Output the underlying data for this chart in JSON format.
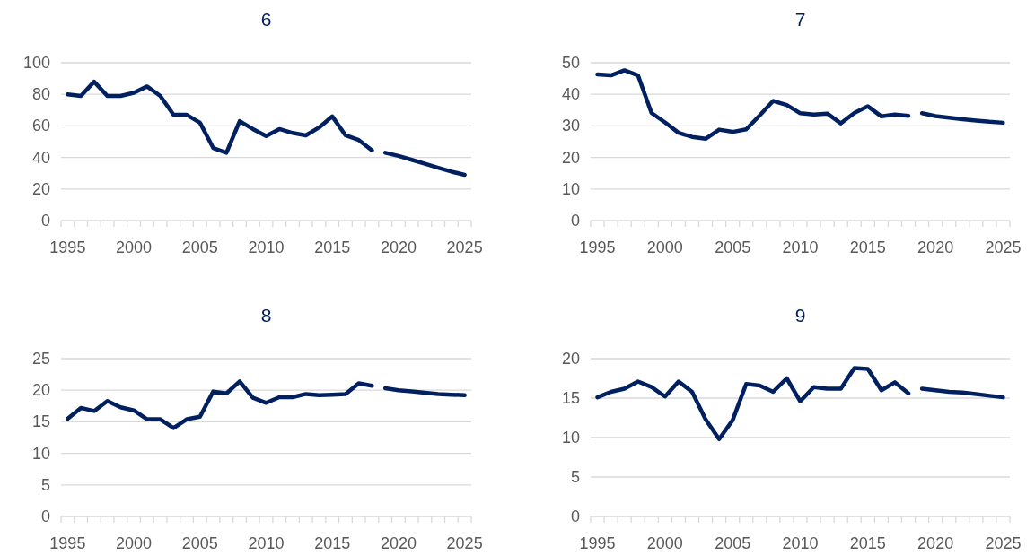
{
  "chart_data": [
    {
      "type": "line",
      "title": "6",
      "xlim": [
        1994.5,
        2025.5
      ],
      "ylim": [
        0,
        100
      ],
      "yticks": [
        0,
        20,
        40,
        60,
        80,
        100
      ],
      "grid": "y",
      "line_style": "solid",
      "marker": "none",
      "xticks": [
        {
          "value": 1994.5,
          "label": null
        },
        1995,
        {
          "value": 1995.5,
          "label": null
        },
        {
          "value": 1996.5,
          "label": null
        },
        {
          "value": 1997.5,
          "label": null
        },
        {
          "value": 1998.5,
          "label": null
        },
        {
          "value": 1999.5,
          "label": null
        },
        2000,
        {
          "value": 2000.5,
          "label": null
        },
        {
          "value": 2001.5,
          "label": null
        },
        {
          "value": 2002.5,
          "label": null
        },
        {
          "value": 2003.5,
          "label": null
        },
        {
          "value": 2004.5,
          "label": null
        },
        2005,
        {
          "value": 2005.5,
          "label": null
        },
        {
          "value": 2006.5,
          "label": null
        },
        {
          "value": 2007.5,
          "label": null
        },
        {
          "value": 2008.5,
          "label": null
        },
        {
          "value": 2009.5,
          "label": null
        },
        2010,
        {
          "value": 2010.5,
          "label": null
        },
        {
          "value": 2011.5,
          "label": null
        },
        {
          "value": 2012.5,
          "label": null
        },
        {
          "value": 2013.5,
          "label": null
        },
        {
          "value": 2014.5,
          "label": null
        },
        2015,
        {
          "value": 2015.5,
          "label": null
        },
        {
          "value": 2016.5,
          "label": null
        },
        {
          "value": 2017.5,
          "label": null
        },
        {
          "value": 2018.5,
          "label": null
        },
        {
          "value": 2019.5,
          "label": null
        },
        2020,
        {
          "value": 2020.5,
          "label": null
        },
        {
          "value": 2021.5,
          "label": null
        },
        {
          "value": 2022.5,
          "label": null
        },
        {
          "value": 2023.5,
          "label": null
        },
        {
          "value": 2024.5,
          "label": null
        },
        2025,
        {
          "value": 2025.5,
          "label": null
        }
      ],
      "series": [
        {
          "color": "#002060",
          "x": [
            1995,
            1996,
            1997,
            1998,
            1999,
            2000,
            2001,
            2002,
            2003,
            2004,
            2005,
            2006,
            2007,
            2008,
            2009,
            2010,
            2011,
            2012,
            2013,
            2014,
            2015,
            2016,
            2017,
            2018
          ],
          "values": [
            80,
            79,
            88,
            79,
            79,
            81,
            85,
            79,
            67,
            67,
            62,
            46,
            43,
            63,
            58,
            53.5,
            58,
            55.5,
            54,
            59,
            66,
            54,
            51,
            44.5
          ]
        },
        {
          "color": "#002060",
          "x": [
            2019,
            2020,
            2021,
            2022,
            2023,
            2024,
            2025
          ],
          "values": [
            43,
            41,
            38.5,
            36,
            33.5,
            31,
            29
          ]
        }
      ]
    },
    {
      "type": "line",
      "title": "7",
      "xlim": [
        1994.5,
        2025.5
      ],
      "ylim": [
        0,
        50
      ],
      "yticks": [
        0,
        10,
        20,
        30,
        40,
        50
      ],
      "grid": "y",
      "line_style": "solid",
      "marker": "none",
      "xticks": [
        {
          "value": 1994.5,
          "label": null
        },
        1995,
        {
          "value": 1995.5,
          "label": null
        },
        {
          "value": 1996.5,
          "label": null
        },
        {
          "value": 1997.5,
          "label": null
        },
        {
          "value": 1998.5,
          "label": null
        },
        {
          "value": 1999.5,
          "label": null
        },
        2000,
        {
          "value": 2000.5,
          "label": null
        },
        {
          "value": 2001.5,
          "label": null
        },
        {
          "value": 2002.5,
          "label": null
        },
        {
          "value": 2003.5,
          "label": null
        },
        {
          "value": 2004.5,
          "label": null
        },
        2005,
        {
          "value": 2005.5,
          "label": null
        },
        {
          "value": 2006.5,
          "label": null
        },
        {
          "value": 2007.5,
          "label": null
        },
        {
          "value": 2008.5,
          "label": null
        },
        {
          "value": 2009.5,
          "label": null
        },
        2010,
        {
          "value": 2010.5,
          "label": null
        },
        {
          "value": 2011.5,
          "label": null
        },
        {
          "value": 2012.5,
          "label": null
        },
        {
          "value": 2013.5,
          "label": null
        },
        {
          "value": 2014.5,
          "label": null
        },
        2015,
        {
          "value": 2015.5,
          "label": null
        },
        {
          "value": 2016.5,
          "label": null
        },
        {
          "value": 2017.5,
          "label": null
        },
        {
          "value": 2018.5,
          "label": null
        },
        {
          "value": 2019.5,
          "label": null
        },
        2020,
        {
          "value": 2020.5,
          "label": null
        },
        {
          "value": 2021.5,
          "label": null
        },
        {
          "value": 2022.5,
          "label": null
        },
        {
          "value": 2023.5,
          "label": null
        },
        {
          "value": 2024.5,
          "label": null
        },
        2025,
        {
          "value": 2025.5,
          "label": null
        }
      ],
      "series": [
        {
          "color": "#002060",
          "x": [
            1995,
            1996,
            1997,
            1998,
            1999,
            2000,
            2001,
            2002,
            2003,
            2004,
            2005,
            2006,
            2007,
            2008,
            2009,
            2010,
            2011,
            2012,
            2013,
            2014,
            2015,
            2016,
            2017,
            2018
          ],
          "values": [
            46.3,
            46,
            47.6,
            46,
            34.1,
            31.1,
            27.8,
            26.5,
            25.9,
            28.8,
            28.1,
            28.9,
            33.3,
            37.9,
            36.6,
            34,
            33.6,
            33.9,
            30.8,
            34.1,
            36.2,
            33,
            33.6,
            33.2
          ]
        },
        {
          "color": "#002060",
          "x": [
            2019,
            2020,
            2021,
            2022,
            2023,
            2024,
            2025
          ],
          "values": [
            34,
            33.1,
            32.6,
            32.1,
            31.7,
            31.3,
            31
          ]
        }
      ]
    },
    {
      "type": "line",
      "title": "8",
      "xlim": [
        1994.5,
        2025.5
      ],
      "ylim": [
        0,
        25
      ],
      "yticks": [
        0,
        5,
        10,
        15,
        20,
        25
      ],
      "grid": "y",
      "line_style": "solid",
      "marker": "none",
      "xticks": [
        {
          "value": 1994.5,
          "label": null
        },
        1995,
        {
          "value": 1995.5,
          "label": null
        },
        {
          "value": 1996.5,
          "label": null
        },
        {
          "value": 1997.5,
          "label": null
        },
        {
          "value": 1998.5,
          "label": null
        },
        {
          "value": 1999.5,
          "label": null
        },
        2000,
        {
          "value": 2000.5,
          "label": null
        },
        {
          "value": 2001.5,
          "label": null
        },
        {
          "value": 2002.5,
          "label": null
        },
        {
          "value": 2003.5,
          "label": null
        },
        {
          "value": 2004.5,
          "label": null
        },
        2005,
        {
          "value": 2005.5,
          "label": null
        },
        {
          "value": 2006.5,
          "label": null
        },
        {
          "value": 2007.5,
          "label": null
        },
        {
          "value": 2008.5,
          "label": null
        },
        {
          "value": 2009.5,
          "label": null
        },
        2010,
        {
          "value": 2010.5,
          "label": null
        },
        {
          "value": 2011.5,
          "label": null
        },
        {
          "value": 2012.5,
          "label": null
        },
        {
          "value": 2013.5,
          "label": null
        },
        {
          "value": 2014.5,
          "label": null
        },
        2015,
        {
          "value": 2015.5,
          "label": null
        },
        {
          "value": 2016.5,
          "label": null
        },
        {
          "value": 2017.5,
          "label": null
        },
        {
          "value": 2018.5,
          "label": null
        },
        {
          "value": 2019.5,
          "label": null
        },
        2020,
        {
          "value": 2020.5,
          "label": null
        },
        {
          "value": 2021.5,
          "label": null
        },
        {
          "value": 2022.5,
          "label": null
        },
        {
          "value": 2023.5,
          "label": null
        },
        {
          "value": 2024.5,
          "label": null
        },
        2025,
        {
          "value": 2025.5,
          "label": null
        }
      ],
      "series": [
        {
          "color": "#002060",
          "x": [
            1995,
            1996,
            1997,
            1998,
            1999,
            2000,
            2001,
            2002,
            2003,
            2004,
            2005,
            2006,
            2007,
            2008,
            2009,
            2010,
            2011,
            2012,
            2013,
            2014,
            2015,
            2016,
            2017,
            2018
          ],
          "values": [
            15.5,
            17.2,
            16.7,
            18.3,
            17.3,
            16.8,
            15.4,
            15.4,
            14,
            15.4,
            15.8,
            19.8,
            19.5,
            21.4,
            18.8,
            18,
            18.9,
            18.9,
            19.4,
            19.2,
            19.3,
            19.4,
            21.1,
            20.7
          ]
        },
        {
          "color": "#002060",
          "x": [
            2019,
            2020,
            2021,
            2022,
            2023,
            2024,
            2025
          ],
          "values": [
            20.3,
            20,
            19.8,
            19.6,
            19.4,
            19.3,
            19.2
          ]
        }
      ]
    },
    {
      "type": "line",
      "title": "9",
      "xlim": [
        1994.5,
        2025.5
      ],
      "ylim": [
        0,
        20
      ],
      "yticks": [
        0,
        5,
        10,
        15,
        20
      ],
      "grid": "y",
      "line_style": "solid",
      "marker": "none",
      "xticks": [
        {
          "value": 1994.5,
          "label": null
        },
        1995,
        {
          "value": 1995.5,
          "label": null
        },
        {
          "value": 1996.5,
          "label": null
        },
        {
          "value": 1997.5,
          "label": null
        },
        {
          "value": 1998.5,
          "label": null
        },
        {
          "value": 1999.5,
          "label": null
        },
        2000,
        {
          "value": 2000.5,
          "label": null
        },
        {
          "value": 2001.5,
          "label": null
        },
        {
          "value": 2002.5,
          "label": null
        },
        {
          "value": 2003.5,
          "label": null
        },
        {
          "value": 2004.5,
          "label": null
        },
        2005,
        {
          "value": 2005.5,
          "label": null
        },
        {
          "value": 2006.5,
          "label": null
        },
        {
          "value": 2007.5,
          "label": null
        },
        {
          "value": 2008.5,
          "label": null
        },
        {
          "value": 2009.5,
          "label": null
        },
        2010,
        {
          "value": 2010.5,
          "label": null
        },
        {
          "value": 2011.5,
          "label": null
        },
        {
          "value": 2012.5,
          "label": null
        },
        {
          "value": 2013.5,
          "label": null
        },
        {
          "value": 2014.5,
          "label": null
        },
        2015,
        {
          "value": 2015.5,
          "label": null
        },
        {
          "value": 2016.5,
          "label": null
        },
        {
          "value": 2017.5,
          "label": null
        },
        {
          "value": 2018.5,
          "label": null
        },
        {
          "value": 2019.5,
          "label": null
        },
        2020,
        {
          "value": 2020.5,
          "label": null
        },
        {
          "value": 2021.5,
          "label": null
        },
        {
          "value": 2022.5,
          "label": null
        },
        {
          "value": 2023.5,
          "label": null
        },
        {
          "value": 2024.5,
          "label": null
        },
        2025,
        {
          "value": 2025.5,
          "label": null
        }
      ],
      "series": [
        {
          "color": "#002060",
          "x": [
            1995,
            1996,
            1997,
            1998,
            1999,
            2000,
            2001,
            2002,
            2003,
            2004,
            2005,
            2006,
            2007,
            2008,
            2009,
            2010,
            2011,
            2012,
            2013,
            2014,
            2015,
            2016,
            2017,
            2018
          ],
          "values": [
            15.1,
            15.8,
            16.2,
            17.1,
            16.4,
            15.2,
            17.1,
            15.8,
            12.3,
            9.8,
            12.2,
            16.8,
            16.6,
            15.8,
            17.5,
            14.6,
            16.4,
            16.2,
            16.2,
            18.8,
            18.7,
            16,
            17,
            15.6
          ]
        },
        {
          "color": "#002060",
          "x": [
            2019,
            2020,
            2021,
            2022,
            2023,
            2024,
            2025
          ],
          "values": [
            16.2,
            16,
            15.8,
            15.7,
            15.5,
            15.3,
            15.1
          ]
        }
      ]
    }
  ]
}
